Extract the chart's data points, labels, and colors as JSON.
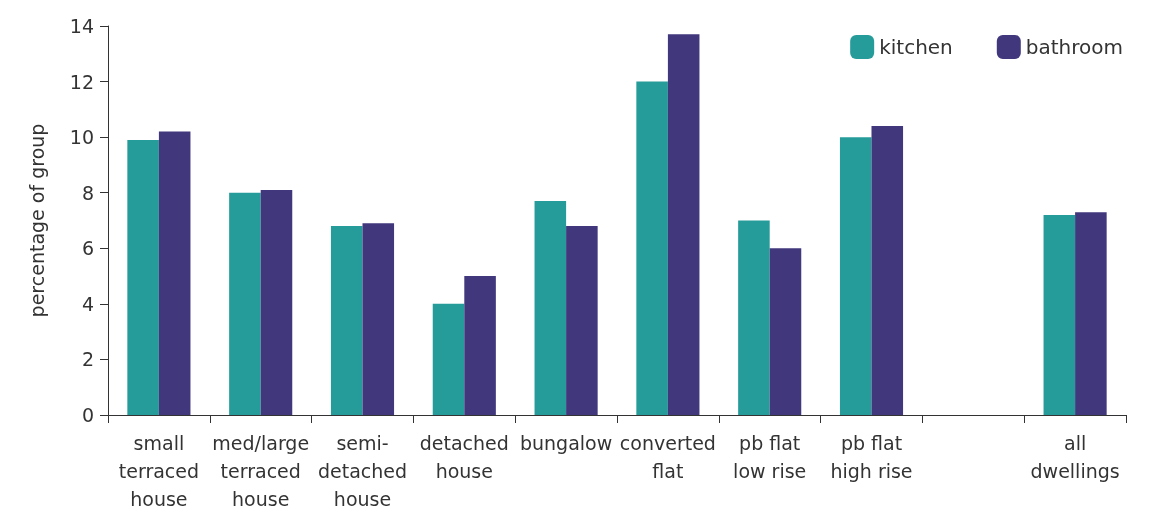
{
  "chart_data": {
    "type": "bar",
    "ylabel": "percentage of group",
    "categories": [
      "small terraced house",
      "med/large terraced house",
      "semi-detached house",
      "detached house",
      "bungalow",
      "converted flat",
      "pb flat low rise",
      "pb flat high rise",
      null,
      "all dwellings"
    ],
    "series": [
      {
        "name": "kitchen",
        "color": "#269c9a",
        "values": [
          9.9,
          8.0,
          6.8,
          4.0,
          7.7,
          12.0,
          7.0,
          10.0,
          null,
          7.2
        ]
      },
      {
        "name": "bathroom",
        "color": "#41377d",
        "values": [
          10.2,
          8.1,
          6.9,
          5.0,
          6.8,
          13.7,
          6.0,
          10.4,
          null,
          7.3
        ]
      }
    ],
    "ylim": [
      0,
      14
    ],
    "yticks": [
      0,
      2,
      4,
      6,
      8,
      10,
      12,
      14
    ],
    "grid": false,
    "legend": "top right"
  }
}
